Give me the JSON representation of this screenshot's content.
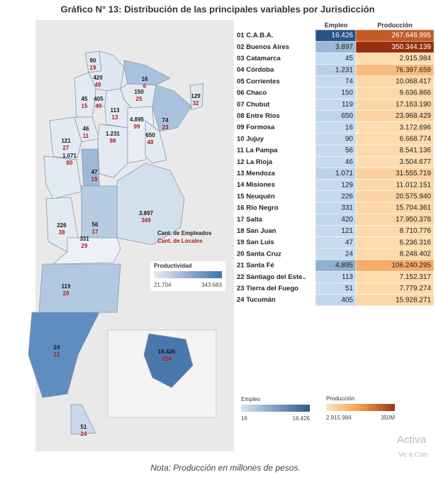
{
  "header": {
    "title": "Gráfico N° 13: Distribución de las principales variables por Jurisdicción"
  },
  "table": {
    "columns": [
      "Empleo",
      "Producción"
    ],
    "rows": [
      [
        "01 C.A.B.A.",
        "16.426",
        "267.648.995"
      ],
      [
        "02 Buenos Aires",
        "3.897",
        "350.344.139"
      ],
      [
        "03 Catamarca",
        "45",
        "2.915.984"
      ],
      [
        "04 Córdoba",
        "1.231",
        "76.397.659"
      ],
      [
        "05 Corrientes",
        "74",
        "10.068.417"
      ],
      [
        "06 Chaco",
        "150",
        "9.636.866"
      ],
      [
        "07 Chubut",
        "119",
        "17.163.190"
      ],
      [
        "08 Entre Ríos",
        "650",
        "23.968.429"
      ],
      [
        "09 Formosa",
        "16",
        "3.172.696"
      ],
      [
        "10 Jujuy",
        "90",
        "6.668.774"
      ],
      [
        "11 La Pampa",
        "56",
        "8.541.136"
      ],
      [
        "12 La Rioja",
        "46",
        "3.504.677"
      ],
      [
        "13 Mendoza",
        "1.071",
        "31.555.719"
      ],
      [
        "14 Misiones",
        "129",
        "11.012.151"
      ],
      [
        "15 Neuquén",
        "226",
        "20.575.940"
      ],
      [
        "16 Río Negro",
        "331",
        "15.704.361"
      ],
      [
        "17 Salta",
        "420",
        "17.950.378"
      ],
      [
        "18 San Juan",
        "121",
        "8.710.776"
      ],
      [
        "19 San Luis",
        "47",
        "6.236.316"
      ],
      [
        "20 Santa Cruz",
        "24",
        "8.248.402"
      ],
      [
        "21 Santa Fé",
        "4.895",
        "106.240.295"
      ],
      [
        "22 Santiago del Este..",
        "113",
        "7.152.317"
      ],
      [
        "23 Tierra del Fuego",
        "51",
        "7.779.274"
      ],
      [
        "24 Tucumán",
        "405",
        "15.928.271"
      ]
    ]
  },
  "map": {
    "labels": [
      [
        "90",
        "19"
      ],
      [
        "420",
        "48"
      ],
      [
        "16",
        "6"
      ],
      [
        "129",
        "32"
      ],
      [
        "405",
        "49"
      ],
      [
        "45",
        "15"
      ],
      [
        "150",
        "25"
      ],
      [
        "113",
        "13"
      ],
      [
        "74",
        "23"
      ],
      [
        "46",
        "11"
      ],
      [
        "121",
        "27"
      ],
      [
        "1.231",
        "98"
      ],
      [
        "4.895",
        "99"
      ],
      [
        "650",
        "48"
      ],
      [
        "47",
        "19"
      ],
      [
        "1.071",
        "80"
      ],
      [
        "3.897",
        "349"
      ],
      [
        "56",
        "17"
      ],
      [
        "226",
        "38"
      ],
      [
        "331",
        "29"
      ],
      [
        "119",
        "29"
      ],
      [
        "24",
        "12"
      ],
      [
        "51",
        "24"
      ],
      [
        "16.426",
        "224"
      ]
    ],
    "legend": [
      "Cant. de Empleados",
      "Cant. de Locales"
    ],
    "productividad": {
      "title": "Productividad",
      "min": "21.704",
      "max": "343.683"
    }
  },
  "legends": {
    "empleo": {
      "title": "Empleo",
      "min": "16",
      "max": "16.426"
    },
    "produccion": {
      "title": "Producción",
      "min": "2.915.984",
      "max": "350M"
    }
  },
  "note": "Nota: Producción en millones de pesos.",
  "watermark": [
    "Activa",
    "Ve a Con"
  ]
}
